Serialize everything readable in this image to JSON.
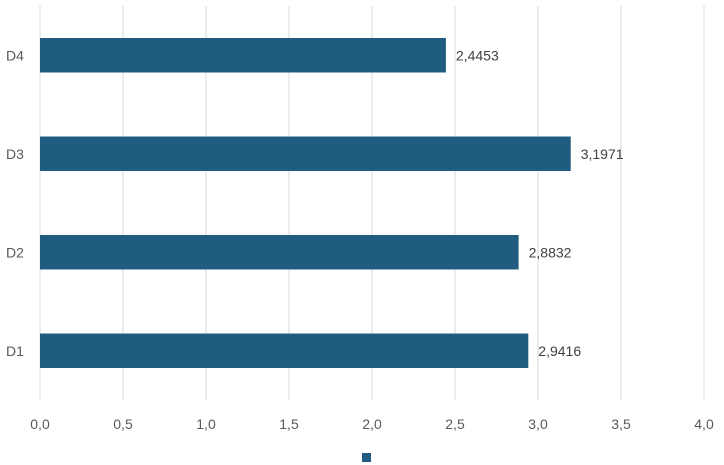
{
  "chart_data": {
    "type": "bar",
    "orientation": "horizontal",
    "categories": [
      "D1",
      "D2",
      "D3",
      "D4"
    ],
    "values": [
      2.9416,
      2.8832,
      3.1971,
      2.4453
    ],
    "data_labels": [
      "2,9416",
      "2,8832",
      "3,1971",
      "2,4453"
    ],
    "xlim": [
      0,
      4
    ],
    "x_ticks": [
      0,
      0.5,
      1,
      1.5,
      2,
      2.5,
      3,
      3.5,
      4
    ],
    "x_tick_labels": [
      "0,0",
      "0,5",
      "1,0",
      "1,5",
      "2,0",
      "2,5",
      "3,0",
      "3,5",
      "4,0"
    ],
    "grid": true,
    "legend_position": "bottom",
    "title": "",
    "xlabel": "",
    "ylabel": "",
    "series_color": "#1f5c80",
    "grid_color": "#d9d9d9",
    "text_color": "#595959"
  }
}
